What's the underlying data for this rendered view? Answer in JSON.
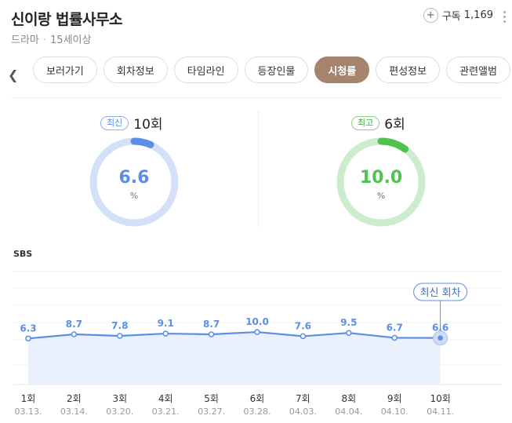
{
  "header": {
    "title": "신이랑 법률사무소",
    "genre": "드라마",
    "rating": "15세이상",
    "subscribe_label": "구독",
    "subscribe_count": "1,169"
  },
  "tabs": [
    "보러가기",
    "회차정보",
    "타임라인",
    "등장인물",
    "시청률",
    "편성정보",
    "관련앨범"
  ],
  "active_tab": "시청률",
  "stats": {
    "latest": {
      "badge": "최신",
      "episode": "10회",
      "value": "6.6",
      "unit": "%",
      "fraction": 0.066,
      "color": "#5b8ee6",
      "track": "#d3e0f8"
    },
    "best": {
      "badge": "최고",
      "episode": "6회",
      "value": "10.0",
      "unit": "%",
      "fraction": 0.1,
      "color": "#4fc24f",
      "track": "#cdeccd"
    }
  },
  "chart_data": {
    "type": "line",
    "broadcaster": "SBS",
    "categories": [
      "1회",
      "2회",
      "3회",
      "4회",
      "5회",
      "6회",
      "7회",
      "8회",
      "9회",
      "10회"
    ],
    "dates": [
      "03.13.",
      "03.14.",
      "03.20.",
      "03.21.",
      "03.27.",
      "03.28.",
      "04.03.",
      "04.04.",
      "04.10.",
      "04.11."
    ],
    "values": [
      6.3,
      8.7,
      7.8,
      9.1,
      8.7,
      10.0,
      7.6,
      9.5,
      6.7,
      6.6
    ],
    "value_labels": [
      "6.3",
      "8.7",
      "7.8",
      "9.1",
      "8.7",
      "10.0",
      "7.6",
      "9.5",
      "6.7",
      "6.6"
    ],
    "ylim": [
      -20,
      45
    ],
    "line_color": "#5b8ee6",
    "fill_color": "#eaf1fd",
    "latest_label": "최신 회차"
  }
}
